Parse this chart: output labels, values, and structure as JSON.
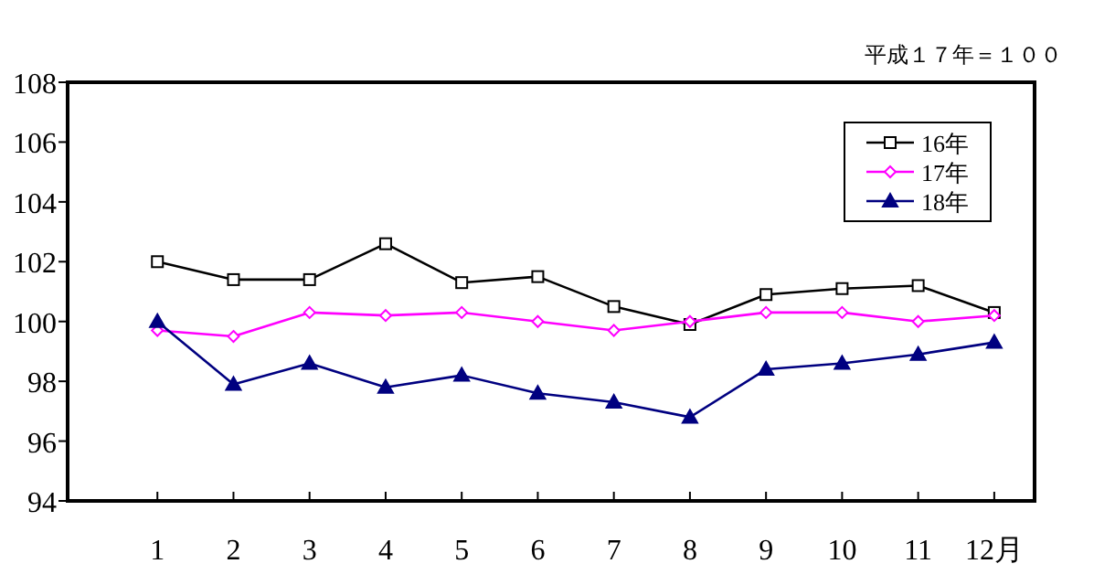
{
  "chart_data": {
    "type": "line",
    "annotations": [
      "平成１７年＝１００"
    ],
    "categories": [
      "1",
      "2",
      "3",
      "4",
      "5",
      "6",
      "7",
      "8",
      "9",
      "10",
      "11",
      "12月"
    ],
    "series": [
      {
        "name": "16年",
        "color": "#000000",
        "marker": "square",
        "values": [
          102.0,
          101.4,
          101.4,
          102.6,
          101.3,
          101.5,
          100.5,
          99.9,
          100.9,
          101.1,
          101.2,
          100.3
        ]
      },
      {
        "name": "17年",
        "color": "#ff00ff",
        "marker": "diamond",
        "values": [
          99.7,
          99.5,
          100.3,
          100.2,
          100.3,
          100.0,
          99.7,
          100.0,
          100.3,
          100.3,
          100.0,
          100.2
        ]
      },
      {
        "name": "18年",
        "color": "#000080",
        "marker": "triangle",
        "values": [
          100.0,
          97.9,
          98.6,
          97.8,
          98.2,
          97.6,
          97.3,
          96.8,
          98.4,
          98.6,
          98.9,
          99.3
        ]
      }
    ],
    "ylim": [
      94,
      108
    ],
    "yticks": [
      94,
      96,
      98,
      100,
      102,
      104,
      106,
      108
    ],
    "grid": false,
    "legend": "top right",
    "line_style": "solid"
  }
}
